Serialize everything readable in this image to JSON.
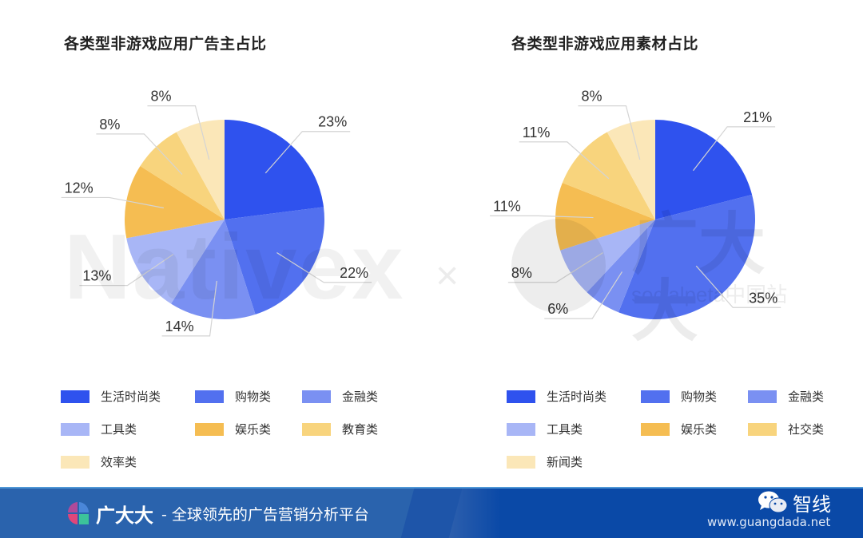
{
  "charts": {
    "left": {
      "title": "各类型非游戏应用广告主占比"
    },
    "right": {
      "title": "各类型非游戏应用素材占比"
    }
  },
  "chart_data": [
    {
      "type": "pie",
      "title": "各类型非游戏应用广告主占比",
      "categories": [
        "生活时尚类",
        "购物类",
        "金融类",
        "工具类",
        "娱乐类",
        "教育类",
        "效率类"
      ],
      "values": [
        23,
        22,
        14,
        13,
        12,
        8,
        8
      ],
      "labels": [
        "23%",
        "22%",
        "14%",
        "13%",
        "12%",
        "8%",
        "8%"
      ],
      "colors": [
        "#2f52ee",
        "#5270ef",
        "#7a90f2",
        "#a8b6f6",
        "#f5bd52",
        "#f8d47d",
        "#fbe7b8"
      ],
      "legend_position": "bottom",
      "start_angle": "12 o'clock, clockwise"
    },
    {
      "type": "pie",
      "title": "各类型非游戏应用素材占比",
      "categories": [
        "生活时尚类",
        "购物类",
        "金融类",
        "工具类",
        "娱乐类",
        "社交类",
        "新闻类"
      ],
      "values": [
        21,
        35,
        6,
        8,
        11,
        11,
        8
      ],
      "labels": [
        "21%",
        "35%",
        "6%",
        "8%",
        "11%",
        "11%",
        "8%"
      ],
      "colors": [
        "#2f52ee",
        "#5270ef",
        "#7a90f2",
        "#a8b6f6",
        "#f5bd52",
        "#f8d47d",
        "#fbe7b8"
      ],
      "legend_position": "bottom",
      "start_angle": "12 o'clock, clockwise"
    }
  ],
  "legend_left": [
    {
      "label": "生活时尚类",
      "color": "#2f52ee"
    },
    {
      "label": "购物类",
      "color": "#5270ef"
    },
    {
      "label": "金融类",
      "color": "#7a90f2"
    },
    {
      "label": "工具类",
      "color": "#a8b6f6"
    },
    {
      "label": "娱乐类",
      "color": "#f5bd52"
    },
    {
      "label": "教育类",
      "color": "#f8d47d"
    },
    {
      "label": "效率类",
      "color": "#fbe7b8"
    }
  ],
  "legend_right": [
    {
      "label": "生活时尚类",
      "color": "#2f52ee"
    },
    {
      "label": "购物类",
      "color": "#5270ef"
    },
    {
      "label": "金融类",
      "color": "#7a90f2"
    },
    {
      "label": "工具类",
      "color": "#a8b6f6"
    },
    {
      "label": "娱乐类",
      "color": "#f5bd52"
    },
    {
      "label": "社交类",
      "color": "#f8d47d"
    },
    {
      "label": "新闻类",
      "color": "#fbe7b8"
    }
  ],
  "watermarks": {
    "left": "Nativex",
    "separator": "×",
    "right_big": "广大大",
    "right_small": "socialpeta中国站"
  },
  "footer": {
    "brand": "广大大",
    "slogan": "- 全球领先的广告营销分析平台",
    "wechat_name": "智线",
    "site": "www.guangdada.net",
    "bg_color": "#2a63ad"
  }
}
